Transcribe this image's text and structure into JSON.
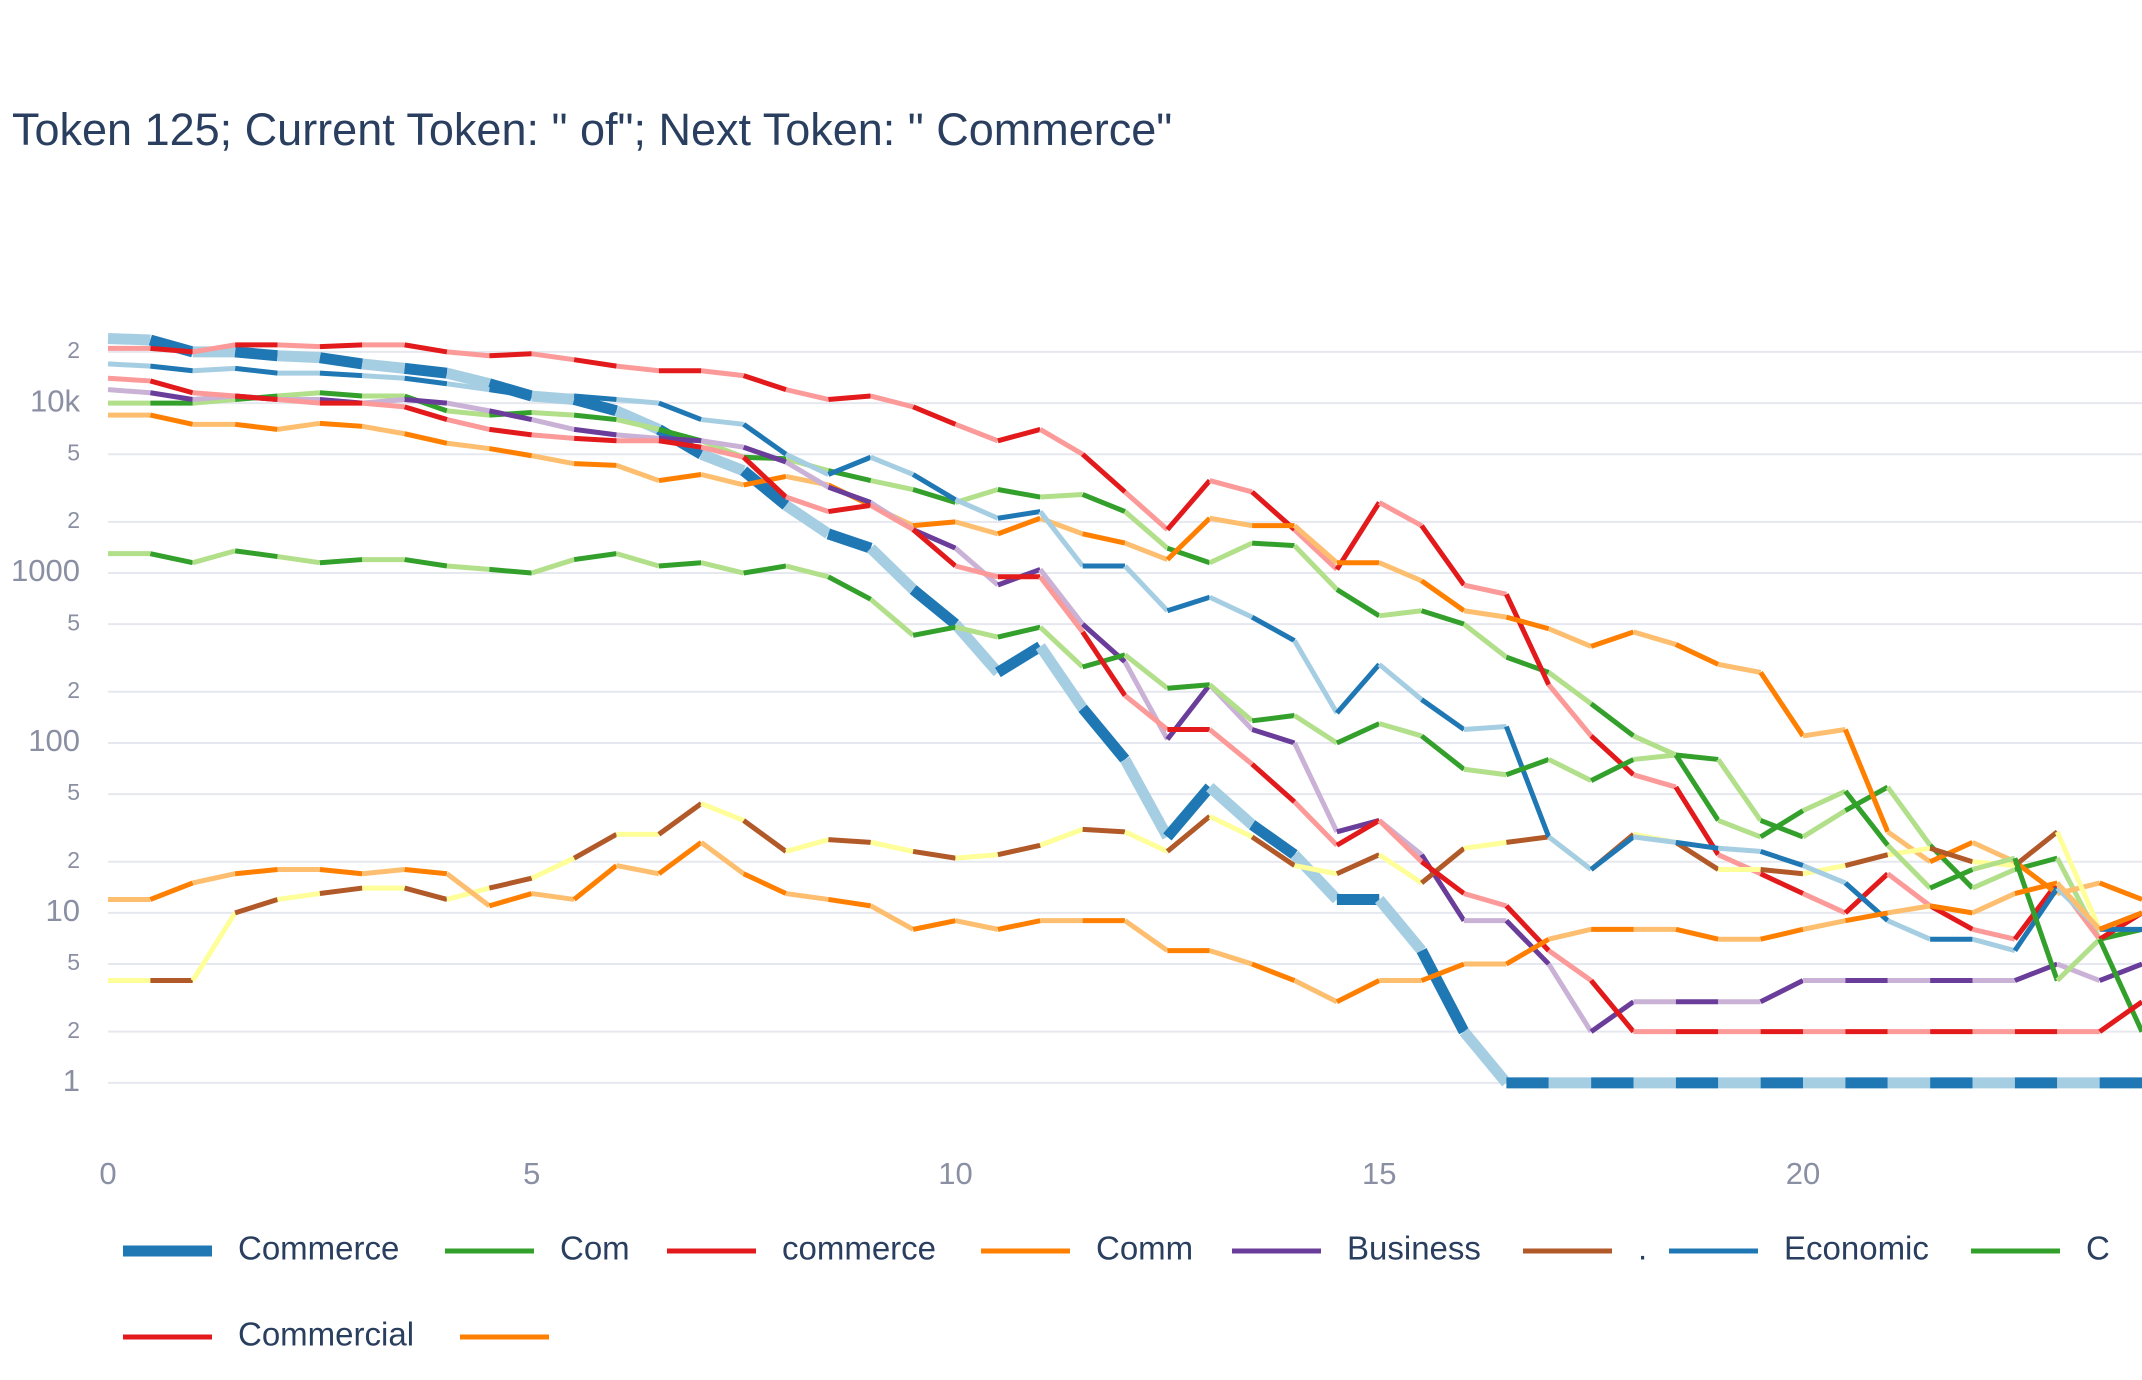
{
  "chart_data": {
    "type": "line",
    "title": "Token 125; Current Token: \" of\"; Next Token: \" Commerce\"",
    "log_y": true,
    "grid": true,
    "xlim": [
      0,
      24
    ],
    "xticks": [
      0,
      5,
      10,
      15,
      20
    ],
    "ylim": [
      0.5,
      30000
    ],
    "yticks": [
      1,
      {
        "value": 2,
        "label": "2"
      },
      {
        "value": 5,
        "label": "5"
      },
      10,
      {
        "value": 20,
        "label": "2"
      },
      {
        "value": 50,
        "label": "5"
      },
      100,
      {
        "value": 200,
        "label": "2"
      },
      {
        "value": 500,
        "label": "5"
      },
      1000,
      {
        "value": 2000,
        "label": "2"
      },
      {
        "value": 5000,
        "label": "5"
      },
      {
        "value": 10000,
        "label": "10k"
      },
      {
        "value": 20000,
        "label": "2"
      }
    ],
    "x": [
      0,
      0.5,
      1,
      1.5,
      2,
      2.5,
      3,
      3.5,
      4,
      4.5,
      5,
      5.5,
      6,
      6.5,
      7,
      7.5,
      8,
      8.5,
      9,
      9.5,
      10,
      10.5,
      11,
      11.5,
      12,
      12.5,
      13,
      13.5,
      14,
      14.5,
      15,
      15.5,
      16,
      16.5,
      17,
      17.5,
      18,
      18.5,
      19,
      19.5,
      20,
      20.5,
      21,
      21.5,
      22,
      22.5,
      23,
      23.5,
      24
    ],
    "series": [
      {
        "name": "Commerce",
        "color": "#1f78b4",
        "alt_color": "#a6cee3",
        "highlight": true,
        "values": [
          24000,
          23500,
          20000,
          20000,
          19000,
          18500,
          17000,
          16000,
          15000,
          13000,
          11000,
          10500,
          9000,
          7000,
          5000,
          4000,
          2500,
          1700,
          1400,
          800,
          500,
          260,
          370,
          160,
          80,
          28,
          55,
          33,
          22,
          12,
          12,
          6,
          2,
          1,
          1,
          1,
          1,
          1,
          1,
          1,
          1,
          1,
          1,
          1,
          1,
          1,
          1,
          1,
          1
        ]
      },
      {
        "name": "Com",
        "color": "#33a02c",
        "alt_color": "#b2df8a",
        "values": [
          10000,
          10000,
          10000,
          10500,
          11000,
          11500,
          11000,
          11000,
          9000,
          8500,
          8800,
          8500,
          8000,
          7000,
          6000,
          4800,
          4700,
          4000,
          3500,
          3100,
          2600,
          3100,
          2800,
          2900,
          2300,
          1400,
          1150,
          1500,
          1450,
          800,
          560,
          600,
          500,
          320,
          260,
          170,
          110,
          85,
          80,
          35,
          28,
          40,
          55,
          25,
          14,
          18,
          21,
          7,
          8
        ]
      },
      {
        "name": "commerce",
        "color": "#e31a1c",
        "alt_color": "#fb9a99",
        "values": [
          21000,
          21000,
          20000,
          22000,
          22000,
          21500,
          22000,
          22000,
          20000,
          19000,
          19500,
          18000,
          16500,
          15500,
          15500,
          14500,
          12000,
          10500,
          11000,
          9500,
          7500,
          6000,
          7000,
          5000,
          3000,
          1800,
          3500,
          3000,
          1800,
          1050,
          2600,
          1900,
          850,
          750,
          220,
          110,
          65,
          55,
          22,
          17,
          13,
          10,
          17,
          11,
          8,
          7,
          15,
          7,
          10
        ]
      },
      {
        "name": "Comm",
        "color": "#ff7f00",
        "alt_color": "#fdbf6f",
        "values": [
          8500,
          8500,
          7500,
          7500,
          7000,
          7600,
          7300,
          6600,
          5800,
          5400,
          4900,
          4400,
          4300,
          3500,
          3800,
          3300,
          3700,
          3300,
          2500,
          1900,
          2000,
          1700,
          2100,
          1700,
          1500,
          1200,
          2100,
          1900,
          1900,
          1150,
          1150,
          900,
          600,
          550,
          470,
          370,
          450,
          380,
          290,
          260,
          110,
          120,
          30,
          20,
          26,
          20,
          13,
          15,
          12
        ]
      },
      {
        "name": "Business",
        "color": "#6a3d9a",
        "alt_color": "#cab2d6",
        "values": [
          12000,
          11500,
          10500,
          11000,
          10500,
          10500,
          10000,
          10500,
          10000,
          9000,
          8000,
          7000,
          6500,
          6200,
          6000,
          5500,
          4500,
          3200,
          2600,
          1800,
          1400,
          850,
          1050,
          500,
          300,
          105,
          220,
          120,
          100,
          30,
          35,
          22,
          9,
          9,
          5,
          2,
          3,
          3,
          3,
          3,
          4,
          4,
          4,
          4,
          4,
          4,
          5,
          4,
          5
        ]
      },
      {
        "name": ".",
        "color": "#b15928",
        "alt_color": "#ffff99",
        "values": [
          4,
          4,
          4,
          10,
          12,
          13,
          14,
          14,
          12,
          14,
          16,
          21,
          29,
          29,
          44,
          35,
          23,
          27,
          26,
          23,
          21,
          22,
          25,
          31,
          30,
          23,
          37,
          28,
          19,
          17,
          22,
          15,
          24,
          26,
          28,
          18,
          29,
          26,
          18,
          18,
          17,
          19,
          22,
          24,
          20,
          19,
          30,
          8,
          10
        ]
      },
      {
        "name": "Economic",
        "color": "#1f78b4",
        "alt_color": "#a6cee3",
        "values": [
          17000,
          16500,
          15500,
          16000,
          15000,
          15000,
          14500,
          14000,
          13000,
          12000,
          11000,
          11000,
          10500,
          10000,
          8000,
          7500,
          5000,
          3800,
          4800,
          3800,
          2700,
          2100,
          2300,
          1100,
          1100,
          600,
          720,
          550,
          400,
          150,
          290,
          180,
          120,
          125,
          28,
          18,
          28,
          26,
          24,
          23,
          19,
          15,
          9,
          7,
          7,
          6,
          14,
          8,
          8
        ]
      },
      {
        "name": "C",
        "color": "#33a02c",
        "alt_color": "#b2df8a",
        "values": [
          1300,
          1300,
          1150,
          1350,
          1250,
          1150,
          1200,
          1200,
          1100,
          1050,
          1000,
          1200,
          1300,
          1100,
          1150,
          1000,
          1100,
          950,
          700,
          430,
          480,
          420,
          480,
          280,
          330,
          210,
          220,
          135,
          145,
          100,
          130,
          110,
          70,
          65,
          80,
          60,
          80,
          85,
          35,
          28,
          40,
          52,
          25,
          14,
          18,
          21,
          4,
          7,
          2
        ]
      },
      {
        "name": "Commercial",
        "color": "#e31a1c",
        "alt_color": "#fb9a99",
        "values": [
          14000,
          13500,
          11500,
          11000,
          10500,
          10000,
          10000,
          9500,
          8000,
          7000,
          6500,
          6200,
          6000,
          6000,
          5500,
          4800,
          2800,
          2300,
          2500,
          1800,
          1100,
          950,
          950,
          450,
          190,
          120,
          120,
          75,
          45,
          25,
          35,
          20,
          13,
          11,
          6,
          4,
          2,
          2,
          2,
          2,
          2,
          2,
          2,
          2,
          2,
          2,
          2,
          2,
          3
        ]
      },
      {
        "color": "#ff7f00",
        "alt_color": "#fdbf6f",
        "values": [
          12,
          12,
          15,
          17,
          18,
          18,
          17,
          18,
          17,
          11,
          13,
          12,
          19,
          17,
          26,
          17,
          13,
          12,
          11,
          8,
          9,
          8,
          9,
          9,
          9,
          6,
          6,
          5,
          4,
          3,
          4,
          4,
          5,
          5,
          7,
          8,
          8,
          8,
          7,
          7,
          8,
          9,
          10,
          11,
          10,
          13,
          15,
          8,
          10
        ]
      }
    ]
  }
}
